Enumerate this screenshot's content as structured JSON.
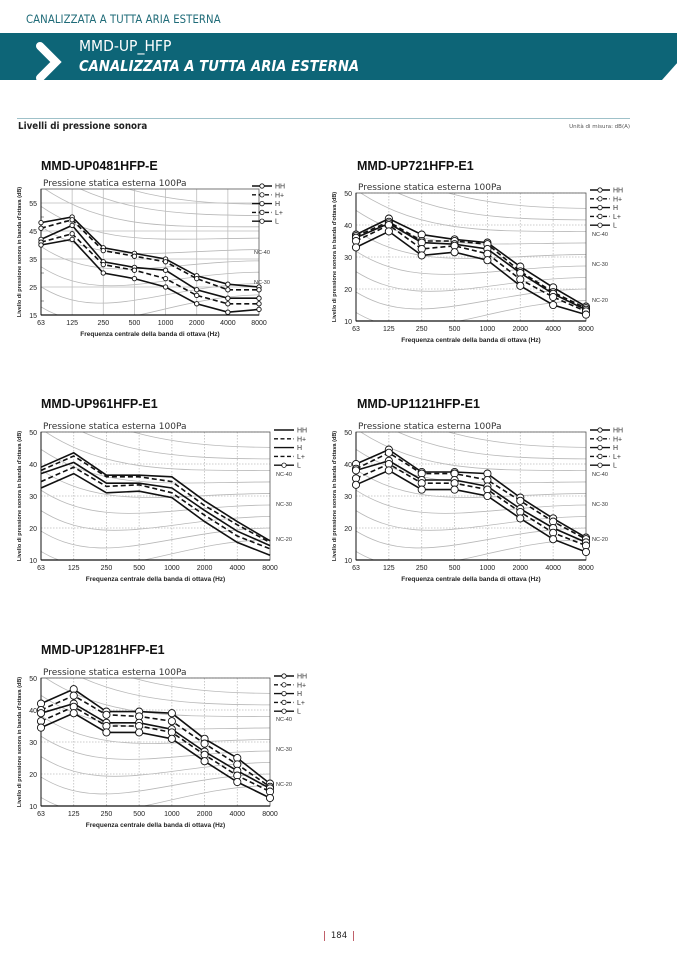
{
  "header": {
    "category": "CANALIZZATA A TUTTA ARIA ESTERNA",
    "model_series": "MMD-UP_HFP",
    "subtitle": "CANALIZZATA A TUTTA ARIA ESTERNA",
    "brand_color": "#0d6577"
  },
  "section": {
    "title": "Livelli di pressione sonora",
    "unit_note": "Unità di misura: dB(A)"
  },
  "page_number": "184",
  "chart_data": [
    {
      "type": "line",
      "title": "MMD-UP0481HFP-E",
      "subtitle": "Pressione statica esterna 100Pa",
      "xlabel": "Frequenza centrale della banda di ottava (Hz)",
      "ylabel": "Livello di pressione sonora in banda d'ottava (dB)",
      "categories": [
        "63",
        "125",
        "250",
        "500",
        "1000",
        "2000",
        "4000",
        "8000"
      ],
      "ylim": [
        15,
        60
      ],
      "yticks": [
        "15",
        "25",
        "35",
        "45",
        "55"
      ],
      "grid": "solid",
      "markers": true,
      "legend_position": "right",
      "nc_labels": [
        "NC-40",
        "NC-30"
      ],
      "series": [
        {
          "name": "HH",
          "style": "solid",
          "values": [
            48,
            50,
            39,
            37,
            35,
            29,
            26,
            25
          ]
        },
        {
          "name": "H+",
          "style": "dashed",
          "values": [
            46,
            49,
            38,
            36,
            34,
            28,
            24,
            24
          ]
        },
        {
          "name": "H",
          "style": "solid",
          "values": [
            42,
            47,
            34,
            32,
            31,
            24,
            21,
            21
          ]
        },
        {
          "name": "L+",
          "style": "dashed",
          "values": [
            41,
            44,
            33,
            31,
            28,
            22,
            19,
            19
          ]
        },
        {
          "name": "L",
          "style": "solid",
          "values": [
            40,
            42,
            30,
            28,
            25,
            19,
            16,
            17
          ]
        }
      ]
    },
    {
      "type": "line",
      "title": "MMD-UP721HFP-E1",
      "subtitle": "Pressione statica esterna 100Pa",
      "xlabel": "Frequenza centrale della banda di ottava (Hz)",
      "ylabel": "Livello di pressione sonora in banda d'ottava (dB)",
      "categories": [
        "63",
        "125",
        "250",
        "500",
        "1000",
        "2000",
        "4000",
        "8000"
      ],
      "ylim": [
        10,
        50
      ],
      "yticks": [
        "10",
        "20",
        "30",
        "40",
        "50"
      ],
      "grid": "dotted",
      "markers": true,
      "legend_position": "right",
      "nc_labels": [
        "NC-40",
        "NC-30",
        "NC-20"
      ],
      "series": [
        {
          "name": "HH",
          "style": "solid",
          "values": [
            37,
            42,
            37,
            35.5,
            34.5,
            27,
            20.5,
            14.5
          ]
        },
        {
          "name": "H+",
          "style": "dashed",
          "values": [
            36.5,
            41,
            35,
            35,
            34,
            25.5,
            19,
            14
          ]
        },
        {
          "name": "H",
          "style": "solid",
          "values": [
            36,
            40.5,
            34.5,
            34,
            32.5,
            25,
            18.5,
            13.5
          ]
        },
        {
          "name": "L+",
          "style": "dashed",
          "values": [
            35,
            40,
            32.5,
            33.5,
            31,
            23,
            17.5,
            13
          ]
        },
        {
          "name": "L",
          "style": "solid",
          "values": [
            33,
            38,
            30.5,
            31.5,
            29,
            21,
            15,
            12
          ]
        }
      ]
    },
    {
      "type": "line",
      "title": "MMD-UP961HFP-E1",
      "subtitle": "Pressione statica esterna 100Pa",
      "xlabel": "Frequenza centrale della banda di ottava (Hz)",
      "ylabel": "Livello di pressione sonora in banda d'ottava (dB)",
      "categories": [
        "63",
        "125",
        "250",
        "500",
        "1000",
        "2000",
        "4000",
        "8000"
      ],
      "ylim": [
        10,
        50
      ],
      "yticks": [
        "10",
        "20",
        "30",
        "40",
        "50"
      ],
      "grid": "dotted",
      "markers": false,
      "legend_marker_series": "L",
      "legend_position": "right",
      "nc_labels": [
        "NC-40",
        "NC-30",
        "NC-20"
      ],
      "series": [
        {
          "name": "HH",
          "style": "solid",
          "values": [
            39,
            43.5,
            36.5,
            36.5,
            36,
            28.5,
            22,
            16
          ]
        },
        {
          "name": "H+",
          "style": "dashed",
          "values": [
            38,
            42.5,
            36,
            36,
            34.5,
            27,
            21,
            15.5
          ]
        },
        {
          "name": "H",
          "style": "solid",
          "values": [
            37,
            40.5,
            34,
            34,
            32.5,
            25.5,
            19,
            14.5
          ]
        },
        {
          "name": "L+",
          "style": "dashed",
          "values": [
            34.5,
            39,
            33,
            33.5,
            31,
            24,
            17.5,
            13.5
          ]
        },
        {
          "name": "L",
          "style": "solid",
          "values": [
            32.5,
            37,
            31,
            31.5,
            29.5,
            22,
            15.5,
            11.5
          ]
        }
      ]
    },
    {
      "type": "line",
      "title": "MMD-UP1121HFP-E1",
      "subtitle": "Pressione statica esterna 100Pa",
      "xlabel": "Frequenza centrale della banda di ottava (Hz)",
      "ylabel": "Livello di pressione sonora in banda d'ottava (dB)",
      "categories": [
        "63",
        "125",
        "250",
        "500",
        "1000",
        "2000",
        "4000",
        "8000"
      ],
      "ylim": [
        10,
        50
      ],
      "yticks": [
        "10",
        "20",
        "30",
        "40",
        "50"
      ],
      "grid": "dotted",
      "markers": true,
      "legend_position": "right",
      "nc_labels": [
        "NC-40",
        "NC-30",
        "NC-20"
      ],
      "series": [
        {
          "name": "HH",
          "style": "solid",
          "values": [
            40,
            44.5,
            37.5,
            37.5,
            37,
            29.5,
            23,
            17
          ]
        },
        {
          "name": "H+",
          "style": "dashed",
          "values": [
            38.5,
            43.5,
            37,
            37,
            35,
            28.5,
            22,
            16.5
          ]
        },
        {
          "name": "H",
          "style": "solid",
          "values": [
            38,
            41,
            35,
            35,
            33,
            26,
            20,
            15.5
          ]
        },
        {
          "name": "L+",
          "style": "dashed",
          "values": [
            35.5,
            40,
            34,
            34,
            32,
            25,
            18.5,
            14.5
          ]
        },
        {
          "name": "L",
          "style": "solid",
          "values": [
            33.5,
            38,
            32,
            32,
            30,
            23,
            16.5,
            12.5
          ]
        }
      ]
    },
    {
      "type": "line",
      "title": "MMD-UP1281HFP-E1",
      "subtitle": "Pressione statica esterna 100Pa",
      "xlabel": "Frequenza centrale della banda di ottava (Hz)",
      "ylabel": "Livello di pressione sonora in banda d'ottava (dB)",
      "categories": [
        "63",
        "125",
        "250",
        "500",
        "1000",
        "2000",
        "4000",
        "8000"
      ],
      "ylim": [
        10,
        50
      ],
      "yticks": [
        "10",
        "20",
        "30",
        "40",
        "50"
      ],
      "grid": "dotted",
      "markers": true,
      "legend_position": "right",
      "nc_labels": [
        "NC-40",
        "NC-30",
        "NC-20"
      ],
      "series": [
        {
          "name": "HH",
          "style": "solid",
          "values": [
            42,
            46.5,
            39.5,
            39.5,
            39,
            31,
            25,
            17
          ]
        },
        {
          "name": "H+",
          "style": "dashed",
          "values": [
            40,
            44.5,
            38.5,
            38,
            36.5,
            29.5,
            23,
            16
          ]
        },
        {
          "name": "H",
          "style": "solid",
          "values": [
            39,
            42,
            36,
            36,
            34,
            27,
            21,
            15.5
          ]
        },
        {
          "name": "L+",
          "style": "dashed",
          "values": [
            36.5,
            41,
            35,
            35,
            33,
            26,
            19.5,
            14.5
          ]
        },
        {
          "name": "L",
          "style": "solid",
          "values": [
            34.5,
            39,
            33,
            33,
            31,
            24,
            17.5,
            12.5
          ]
        }
      ]
    }
  ]
}
